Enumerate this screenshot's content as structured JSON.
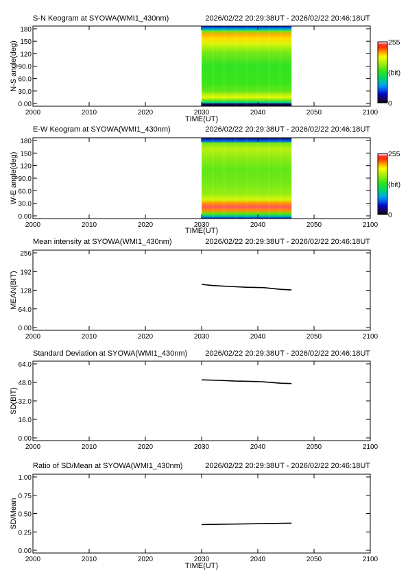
{
  "chart_data": [
    {
      "type": "heatmap",
      "title": "S-N Keogram at SYOWA(WMI1_430nm)",
      "time_range": "2026/02/22 20:29:38UT - 2026/02/22 20:46:18UT",
      "xlabel": "TIME(UT)",
      "ylabel": "N-S angle(deg)",
      "x_ticks": [
        "2000",
        "2010",
        "2020",
        "2030",
        "2040",
        "2050",
        "2100"
      ],
      "y_ticks": [
        "0.00",
        "30.0",
        "60.0",
        "90.0",
        "120",
        "150",
        "180"
      ],
      "xlim": [
        "2000",
        "2100"
      ],
      "ylim": [
        0,
        180
      ],
      "data_extent": {
        "x": [
          "2030",
          "2046"
        ],
        "y": [
          0,
          180
        ]
      },
      "colorbar": {
        "min_label": "0",
        "max_label": "255",
        "unit_label": "(bit)"
      },
      "profile": [
        {
          "y": 0,
          "value": 0
        },
        {
          "y": 5,
          "value": 20
        },
        {
          "y": 8,
          "value": 100
        },
        {
          "y": 14,
          "value": 150
        },
        {
          "y": 20,
          "value": 185
        },
        {
          "y": 26,
          "value": 170
        },
        {
          "y": 34,
          "value": 145
        },
        {
          "y": 50,
          "value": 135
        },
        {
          "y": 90,
          "value": 130
        },
        {
          "y": 120,
          "value": 150
        },
        {
          "y": 140,
          "value": 180
        },
        {
          "y": 152,
          "value": 200
        },
        {
          "y": 162,
          "value": 210
        },
        {
          "y": 168,
          "value": 150
        },
        {
          "y": 173,
          "value": 80
        },
        {
          "y": 180,
          "value": 40
        }
      ]
    },
    {
      "type": "heatmap",
      "title": "E-W Keogram at SYOWA(WMI1_430nm)",
      "time_range": "2026/02/22 20:29:38UT - 2026/02/22 20:46:18UT",
      "xlabel": "TIME(UT)",
      "ylabel": "W-E angle(deg)",
      "x_ticks": [
        "2000",
        "2010",
        "2020",
        "2030",
        "2040",
        "2050",
        "2100"
      ],
      "y_ticks": [
        "0.00",
        "30.0",
        "60.0",
        "90.0",
        "120",
        "150",
        "180"
      ],
      "xlim": [
        "2000",
        "2100"
      ],
      "ylim": [
        0,
        180
      ],
      "data_extent": {
        "x": [
          "2030",
          "2046"
        ],
        "y": [
          0,
          180
        ]
      },
      "colorbar": {
        "min_label": "0",
        "max_label": "255",
        "unit_label": "(bit)"
      },
      "profile": [
        {
          "y": 0,
          "value": 40
        },
        {
          "y": 5,
          "value": 90
        },
        {
          "y": 10,
          "value": 140
        },
        {
          "y": 18,
          "value": 215
        },
        {
          "y": 26,
          "value": 245
        },
        {
          "y": 34,
          "value": 215
        },
        {
          "y": 42,
          "value": 180
        },
        {
          "y": 55,
          "value": 160
        },
        {
          "y": 80,
          "value": 150
        },
        {
          "y": 110,
          "value": 145
        },
        {
          "y": 140,
          "value": 160
        },
        {
          "y": 155,
          "value": 170
        },
        {
          "y": 168,
          "value": 150
        },
        {
          "y": 172,
          "value": 60
        },
        {
          "y": 180,
          "value": 20
        }
      ]
    },
    {
      "type": "line",
      "title": "Mean intensity at SYOWA(WMI1_430nm)",
      "time_range": "2026/02/22 20:29:38UT - 2026/02/22 20:46:18UT",
      "xlabel": "",
      "ylabel": "MEAN(BIT)",
      "x_ticks": [
        "2000",
        "2010",
        "2020",
        "2030",
        "2040",
        "2050",
        "2100"
      ],
      "y_ticks": [
        "0.00",
        "64.0",
        "128",
        "192",
        "256"
      ],
      "ylim": [
        0,
        256
      ],
      "series": [
        {
          "x": [
            "2030",
            "2032",
            "2035",
            "2038",
            "2041",
            "2044",
            "2046"
          ],
          "values": [
            148,
            144,
            141,
            138,
            137,
            131,
            129
          ]
        }
      ]
    },
    {
      "type": "line",
      "title": "Standard Deviation at SYOWA(WMI1_430nm)",
      "time_range": "2026/02/22 20:29:38UT - 2026/02/22 20:46:18UT",
      "xlabel": "",
      "ylabel": "SD(BIT)",
      "x_ticks": [
        "2000",
        "2010",
        "2020",
        "2030",
        "2040",
        "2050",
        "2100"
      ],
      "y_ticks": [
        "0.00",
        "16.0",
        "32.0",
        "48.0",
        "64.0"
      ],
      "ylim": [
        0,
        64
      ],
      "series": [
        {
          "x": [
            "2030",
            "2033",
            "2036",
            "2039",
            "2041",
            "2044",
            "2046"
          ],
          "values": [
            50.2,
            49.8,
            49.1,
            48.8,
            48.5,
            47.3,
            47.0
          ]
        }
      ]
    },
    {
      "type": "line",
      "title": "Ratio of SD/Mean at SYOWA(WMI1_430nm)",
      "time_range": "2026/02/22 20:29:38UT - 2026/02/22 20:46:18UT",
      "xlabel": "TIME(UT)",
      "ylabel": "SD/Mean",
      "x_ticks": [
        "2000",
        "2010",
        "2020",
        "2030",
        "2040",
        "2050",
        "2100"
      ],
      "y_ticks": [
        "0.00",
        "0.25",
        "0.50",
        "0.75",
        "1.00"
      ],
      "ylim": [
        0,
        1
      ],
      "series": [
        {
          "x": [
            "2030",
            "2034",
            "2038",
            "2042",
            "2046"
          ],
          "values": [
            0.35,
            0.355,
            0.36,
            0.365,
            0.37
          ]
        }
      ]
    }
  ]
}
